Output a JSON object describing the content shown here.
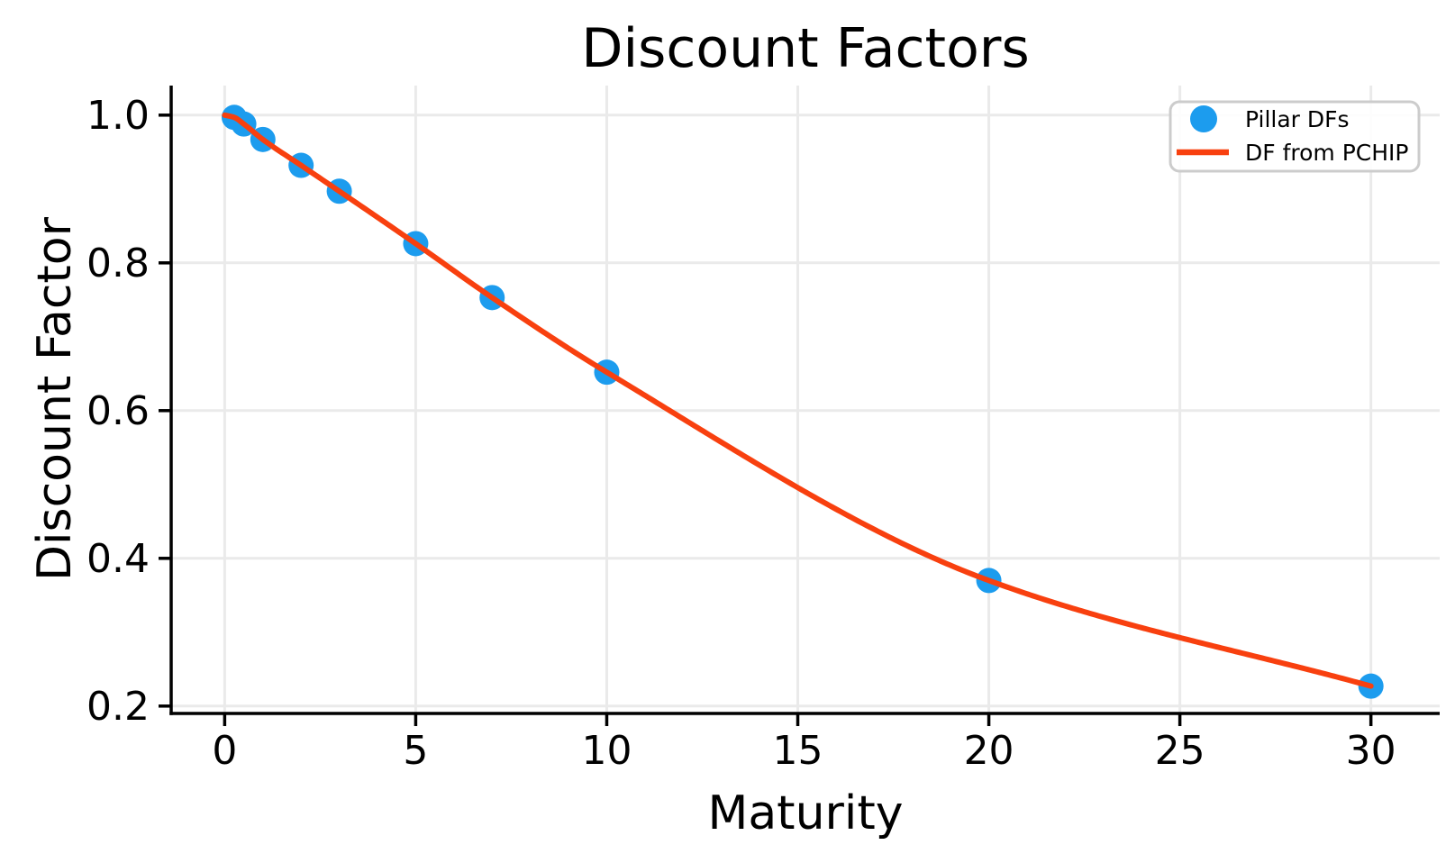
{
  "chart_data": {
    "type": "line",
    "title": "Discount Factors",
    "xlabel": "Maturity",
    "ylabel": "Discount Factor",
    "xlim": [
      -1.4,
      31.8
    ],
    "ylim": [
      0.19,
      1.04
    ],
    "xticks": [
      0,
      5,
      10,
      15,
      20,
      25,
      30
    ],
    "yticks": [
      0.2,
      0.4,
      0.6,
      0.8,
      1.0
    ],
    "grid": true,
    "legend_position": "upper right",
    "series": [
      {
        "name": "Pillar DFs",
        "type": "scatter",
        "color": "#1C9CEE",
        "marker": "circle",
        "marker_radius": 14,
        "x": [
          0.25,
          0.5,
          1,
          2,
          3,
          5,
          7,
          10,
          20,
          30
        ],
        "y": [
          0.997,
          0.988,
          0.967,
          0.932,
          0.897,
          0.826,
          0.753,
          0.652,
          0.37,
          0.227
        ]
      },
      {
        "name": "DF from PCHIP",
        "type": "line",
        "color": "#F8400F",
        "line_width": 6,
        "interpolation": "pchip",
        "x": [
          0,
          0.25,
          0.5,
          1,
          2,
          3,
          5,
          7,
          10,
          20,
          30
        ],
        "y": [
          1.0,
          0.997,
          0.988,
          0.967,
          0.932,
          0.897,
          0.826,
          0.753,
          0.652,
          0.37,
          0.227
        ]
      }
    ]
  }
}
